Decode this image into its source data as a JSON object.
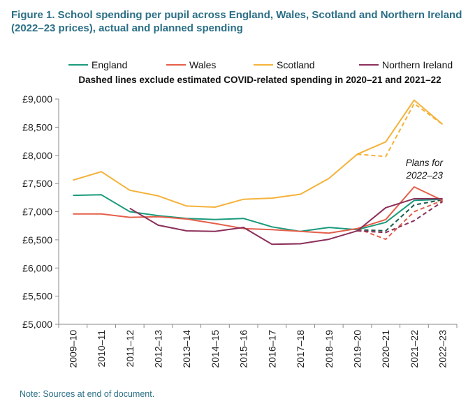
{
  "figure_title": "Figure 1. School spending per pupil across England, Wales, Scotland and Northern Ireland (2022–23 prices), actual and planned spending",
  "note": "Note: Sources at end of document.",
  "chart_data": {
    "type": "line",
    "subtitle": "Dashed lines exclude estimated COVID-related spending in 2020–21 and 2021–22",
    "annotation": [
      "Plans for",
      "2022–23"
    ],
    "categories": [
      "2009–10",
      "2010–11",
      "2011–12",
      "2012–13",
      "2013–14",
      "2014–15",
      "2015–16",
      "2016–17",
      "2017–18",
      "2018–19",
      "2019–20",
      "2020–21",
      "2021–22",
      "2022–23"
    ],
    "y_ticks": [
      "£5,000",
      "£5,500",
      "£6,000",
      "£6,500",
      "£7,000",
      "£7,500",
      "£8,000",
      "£8,500",
      "£9,000"
    ],
    "ylim": [
      5000,
      9000
    ],
    "grid": false,
    "legend_position": "top",
    "series": [
      {
        "name": "England",
        "color": "#1a9a7c",
        "values": [
          7290,
          7300,
          7000,
          6930,
          6880,
          6860,
          6880,
          6730,
          6650,
          6720,
          6680,
          6810,
          7200,
          7220
        ],
        "dashed_x": [
          10,
          11,
          12,
          13
        ],
        "dashed_values": [
          6680,
          6660,
          7120,
          7210
        ],
        "dash_color": "#1e5a4a"
      },
      {
        "name": "Wales",
        "color": "#e55f4a",
        "values": [
          6960,
          6960,
          6900,
          6910,
          6870,
          6790,
          6700,
          6680,
          6650,
          6620,
          6700,
          6860,
          7440,
          7200
        ],
        "dashed_x": [
          10,
          11,
          12,
          13
        ],
        "dashed_values": [
          6700,
          6510,
          7000,
          7200
        ],
        "dash_color": "#e55f4a"
      },
      {
        "name": "Scotland",
        "color": "#f5b23a",
        "values": [
          7560,
          7710,
          7380,
          7280,
          7100,
          7080,
          7220,
          7240,
          7310,
          7590,
          8020,
          8240,
          8980,
          8550
        ],
        "dashed_x": [
          10,
          11,
          12,
          13
        ],
        "dashed_values": [
          8020,
          7980,
          8920,
          8550
        ],
        "dash_color": "#f5b23a"
      },
      {
        "name": "Northern Ireland",
        "color": "#8b2e5a",
        "values": [
          null,
          null,
          7060,
          6760,
          6660,
          6650,
          6720,
          6420,
          6430,
          6510,
          6660,
          7070,
          7230,
          7230
        ],
        "dashed_x": [
          10,
          11,
          12,
          13
        ],
        "dashed_values": [
          6660,
          6630,
          6840,
          7180
        ],
        "dash_color": "#8b2e5a"
      }
    ]
  }
}
